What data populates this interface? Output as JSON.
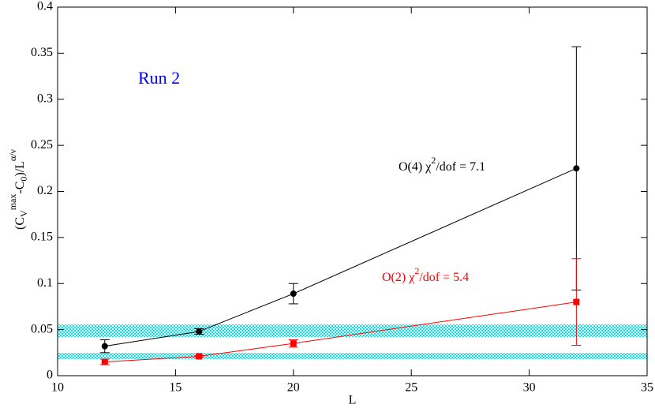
{
  "chart_data": {
    "type": "line",
    "xlabel": "L",
    "ylabel": [
      "(C",
      "V",
      "max",
      "-C",
      "0",
      ")/L",
      "α/ν"
    ],
    "x": [
      12,
      16,
      20,
      32
    ],
    "series": [
      {
        "name": [
          "O(4)  χ",
          "2",
          "/dof = 7.1"
        ],
        "color": "#000000",
        "marker": "circle",
        "values": [
          0.032,
          0.048,
          0.089,
          0.225
        ],
        "errors": [
          0.007,
          0.003,
          0.011,
          0.132
        ]
      },
      {
        "name": [
          "O(2)  χ",
          "2",
          "/dof = 5.4"
        ],
        "color": "#ff0000",
        "marker": "square",
        "values": [
          0.015,
          0.021,
          0.035,
          0.08
        ],
        "errors": [
          0.003,
          0.001,
          0.004,
          0.047
        ]
      }
    ],
    "bands": [
      {
        "low": 0.042,
        "high": 0.0557,
        "color": "#00e5ee"
      },
      {
        "low": 0.018,
        "high": 0.0248,
        "color": "#00e5ee"
      }
    ],
    "annotation": {
      "text": "Run 2",
      "color": "#0000ff"
    },
    "xlim": [
      10,
      35
    ],
    "xticks": [
      10,
      15,
      20,
      25,
      30,
      35
    ],
    "ylim": [
      0,
      0.4
    ],
    "yticks": [
      0,
      0.05,
      0.1,
      0.15,
      0.2,
      0.25,
      0.3,
      0.35,
      0.4
    ]
  }
}
